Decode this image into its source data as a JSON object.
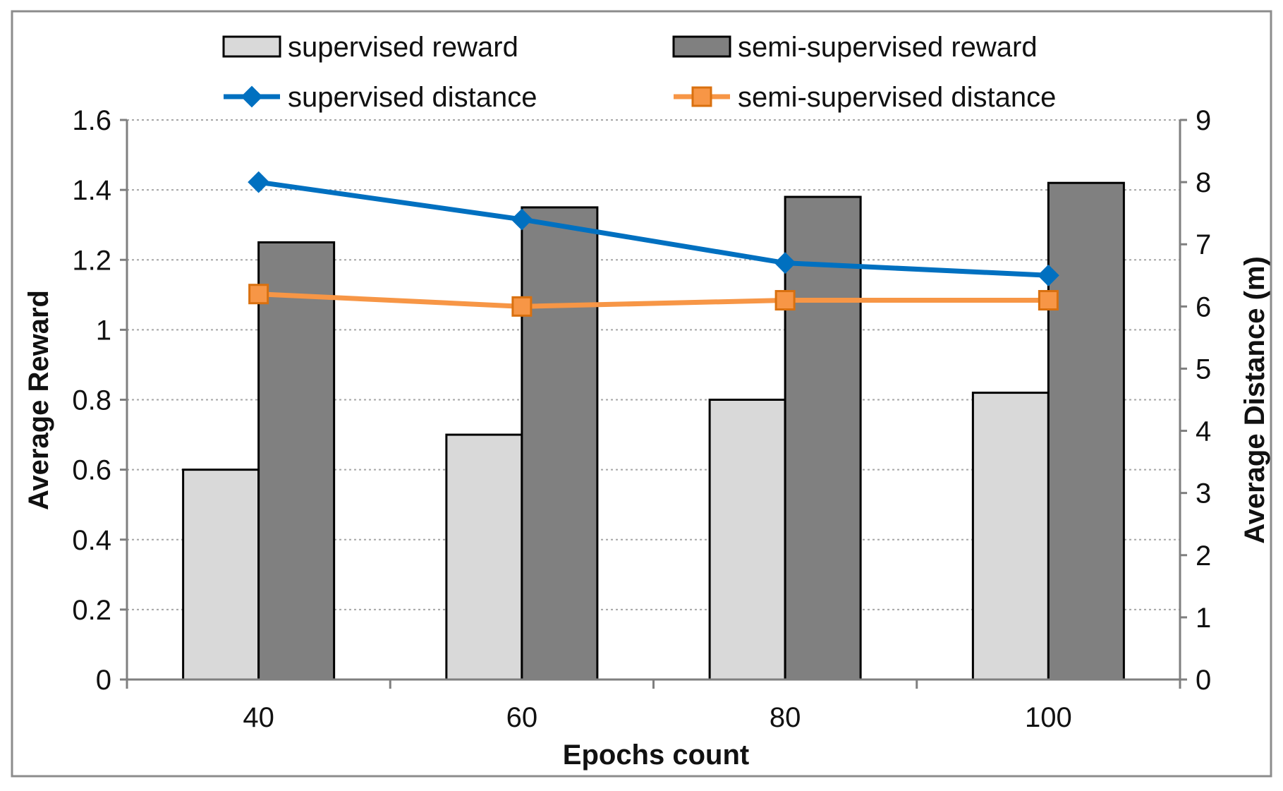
{
  "chart_data": {
    "type": "bar",
    "categories": [
      "40",
      "60",
      "80",
      "100"
    ],
    "xlabel": "Epochs count",
    "ylabel": "Average Reward",
    "y2label": "Average Distance (m)",
    "ylim": [
      0,
      1.6
    ],
    "y2lim": [
      0,
      9
    ],
    "yticks": [
      "0",
      "0.2",
      "0.4",
      "0.6",
      "0.8",
      "1",
      "1.2",
      "1.4",
      "1.6"
    ],
    "y2ticks": [
      "0",
      "1",
      "2",
      "3",
      "4",
      "5",
      "6",
      "7",
      "8",
      "9"
    ],
    "grid": true,
    "legend_position": "top",
    "series": [
      {
        "name": "supervised reward",
        "kind": "bar",
        "axis": "left",
        "color": "#d9d9d9",
        "values": [
          0.6,
          0.7,
          0.8,
          0.82
        ]
      },
      {
        "name": "semi-supervised reward",
        "kind": "bar",
        "axis": "left",
        "color": "#808080",
        "values": [
          1.25,
          1.35,
          1.38,
          1.42
        ]
      },
      {
        "name": "supervised distance",
        "kind": "line",
        "marker": "diamond",
        "axis": "right",
        "color": "#0070c0",
        "values": [
          8.0,
          7.4,
          6.7,
          6.5
        ]
      },
      {
        "name": "semi-supervised distance",
        "kind": "line",
        "marker": "square",
        "axis": "right",
        "color": "#f79646",
        "values": [
          6.2,
          6.0,
          6.1,
          6.1
        ]
      }
    ]
  }
}
